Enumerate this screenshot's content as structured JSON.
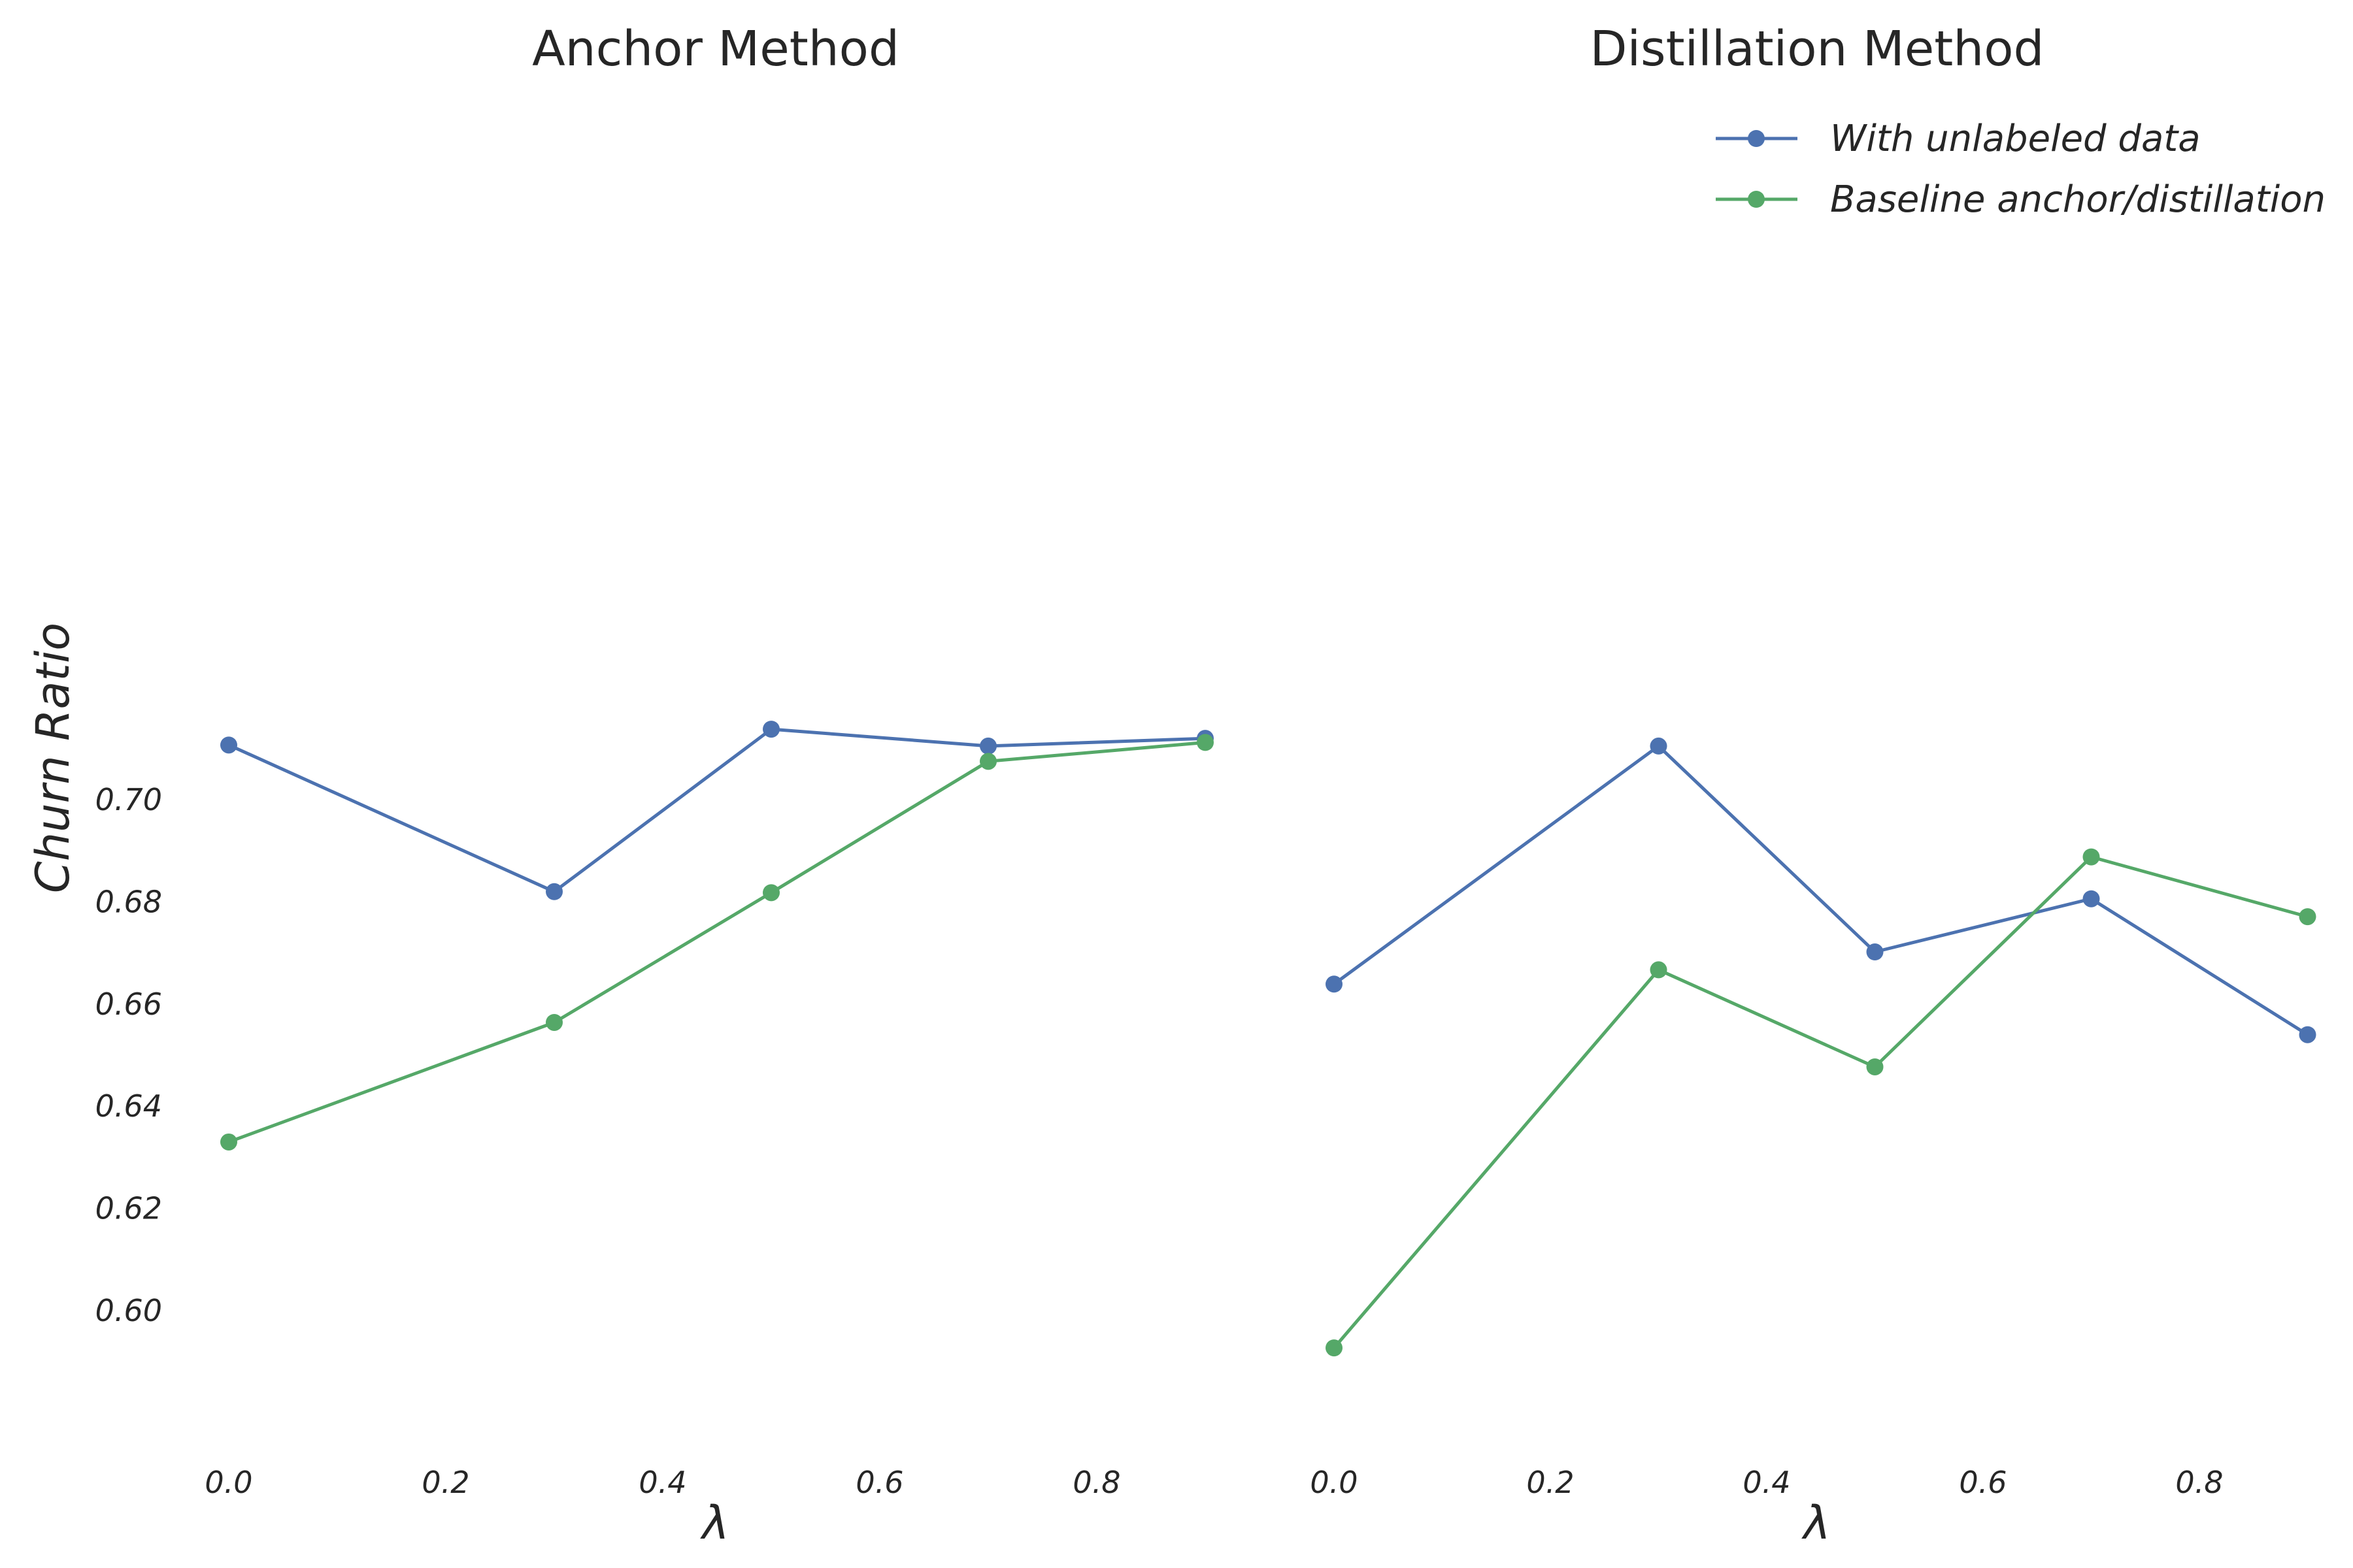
{
  "chart_data": [
    {
      "type": "line",
      "title": "Anchor Method",
      "xlabel": "λ",
      "ylabel": "Churn Ratio",
      "x": [
        0.0,
        0.3,
        0.5,
        0.7,
        0.9
      ],
      "xticks": [
        0.0,
        0.2,
        0.4,
        0.6,
        0.8
      ],
      "xtick_labels": [
        "0.0",
        "0.2",
        "0.4",
        "0.6",
        "0.8"
      ],
      "yticks": [
        0.6,
        0.62,
        0.64,
        0.66,
        0.68,
        0.7
      ],
      "ytick_labels": [
        "0.60",
        "0.62",
        "0.64",
        "0.66",
        "0.68",
        "0.70"
      ],
      "xlim": [
        -0.02,
        0.92
      ],
      "ylim": [
        0.5857,
        0.7215
      ],
      "grid": false,
      "series": [
        {
          "name": "With unlabeled data",
          "color": "#4c72b0",
          "values": [
            0.7107,
            0.682,
            0.7138,
            0.7105,
            0.712
          ]
        },
        {
          "name": "Baseline anchor/distillation",
          "color": "#55a868",
          "values": [
            0.633,
            0.6564,
            0.6818,
            0.7075,
            0.7112
          ]
        }
      ]
    },
    {
      "type": "line",
      "title": "Distillation Method",
      "xlabel": "λ",
      "ylabel": "",
      "x": [
        0.0,
        0.3,
        0.5,
        0.7,
        0.9
      ],
      "xticks": [
        0.0,
        0.2,
        0.4,
        0.6,
        0.8
      ],
      "xtick_labels": [
        "0.0",
        "0.2",
        "0.4",
        "0.6",
        "0.8"
      ],
      "yticks": [],
      "ytick_labels": [],
      "xlim": [
        -0.02,
        0.92
      ],
      "ylim": [
        0.5857,
        0.7215
      ],
      "grid": false,
      "legend": "top-right",
      "series": [
        {
          "name": "With unlabeled data",
          "color": "#4c72b0",
          "values": [
            0.6639,
            0.7105,
            0.6702,
            0.6806,
            0.654
          ]
        },
        {
          "name": "Baseline anchor/distillation",
          "color": "#55a868",
          "values": [
            0.5927,
            0.6667,
            0.6477,
            0.6888,
            0.6771
          ]
        }
      ]
    }
  ]
}
